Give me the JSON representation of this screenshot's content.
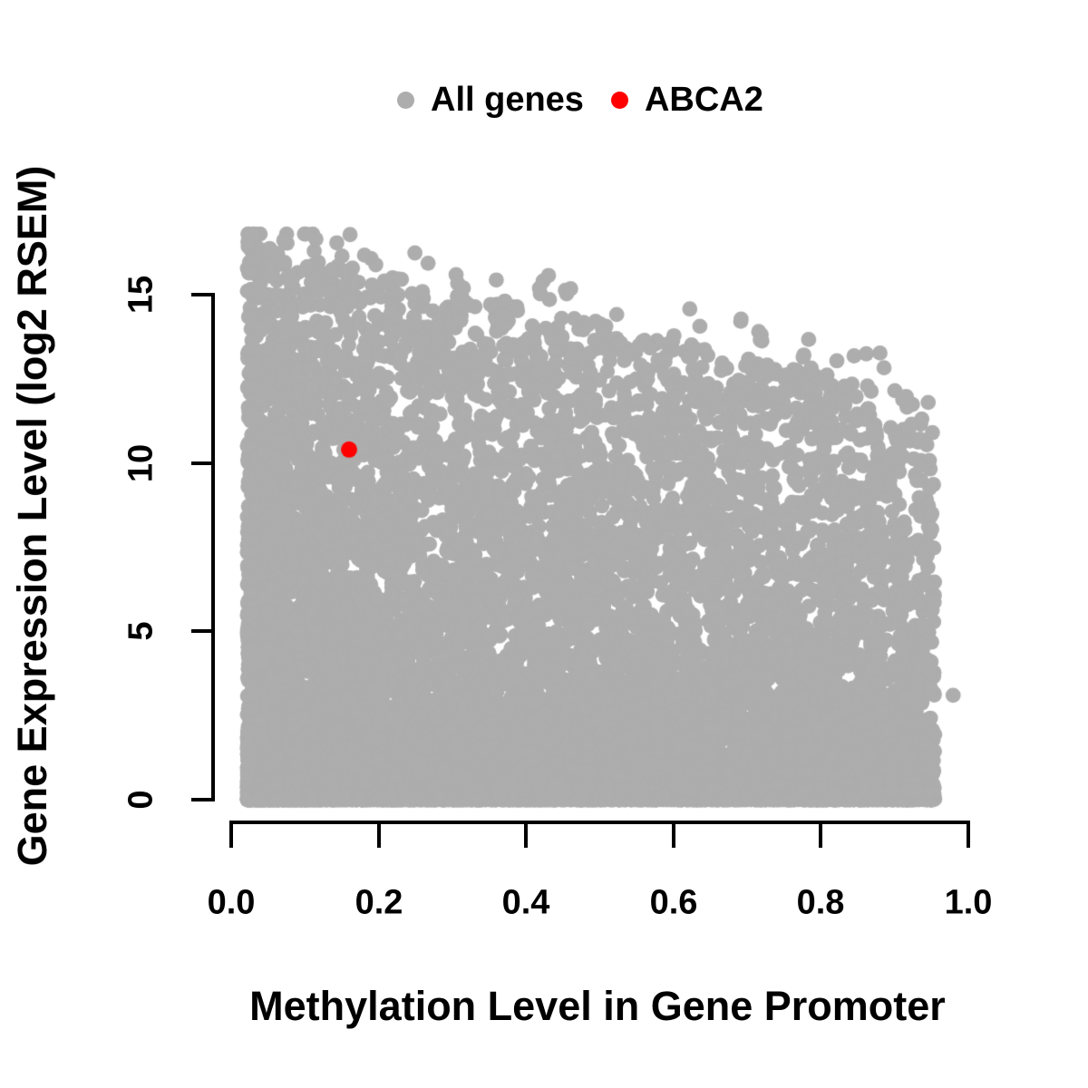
{
  "colors": {
    "all_genes": "#ADADAD",
    "highlight": "#FF0000",
    "axis": "#000000",
    "background": "#FFFFFF"
  },
  "legend": {
    "items": [
      {
        "label": "All genes",
        "color": "#ADADAD"
      },
      {
        "label": "ABCA2",
        "color": "#FF0000"
      }
    ]
  },
  "chart_data": {
    "type": "scatter",
    "title": "",
    "xlabel": "Methylation Level in Gene Promoter",
    "ylabel": "Gene Expression Level (log2 RSEM)",
    "xlim": [
      0.0,
      1.0
    ],
    "ylim": [
      0,
      16.8
    ],
    "x_ticks": [
      0.0,
      0.2,
      0.4,
      0.6,
      0.8,
      1.0
    ],
    "x_tick_labels": [
      "0.0",
      "0.2",
      "0.4",
      "0.6",
      "0.8",
      "1.0"
    ],
    "y_ticks": [
      0,
      5,
      10,
      15
    ],
    "y_tick_labels": [
      "0",
      "5",
      "10",
      "15"
    ],
    "grid": "off",
    "legend_position": "top-center",
    "series": [
      {
        "name": "All genes",
        "color": "#ADADAD",
        "marker": "filled-circle",
        "n_points_est": 12500,
        "x_range": [
          0.02,
          0.955
        ],
        "y_range": [
          0,
          16.8
        ],
        "description": "Dense cloud of genes; maximum expression level declines as promoter methylation increases (negative-correlation envelope from ~16.5 at x=0 to ~12 at x=0.95); very dense band at expression 0.",
        "generator": {
          "seed": 1337,
          "n_points": 12500,
          "x_min": 0.022,
          "x_span": 0.933,
          "x_exponent": 1.35,
          "envelope_intercept": 16.6,
          "envelope_slope": -4.9,
          "y_exponent": 3.0,
          "y_max": 16.8,
          "n_crown_points": 60,
          "crown_x_span": 0.9,
          "crown_x_exponent": 2.0,
          "crown_max_rise": 1.1,
          "point_radius_px": 8.4
        },
        "extra_points": [
          [
            0.98,
            3.1
          ]
        ]
      },
      {
        "name": "ABCA2",
        "color": "#FF0000",
        "marker": "filled-circle",
        "points": [
          [
            0.16,
            10.4
          ]
        ],
        "point_radius_px": 9
      }
    ]
  }
}
